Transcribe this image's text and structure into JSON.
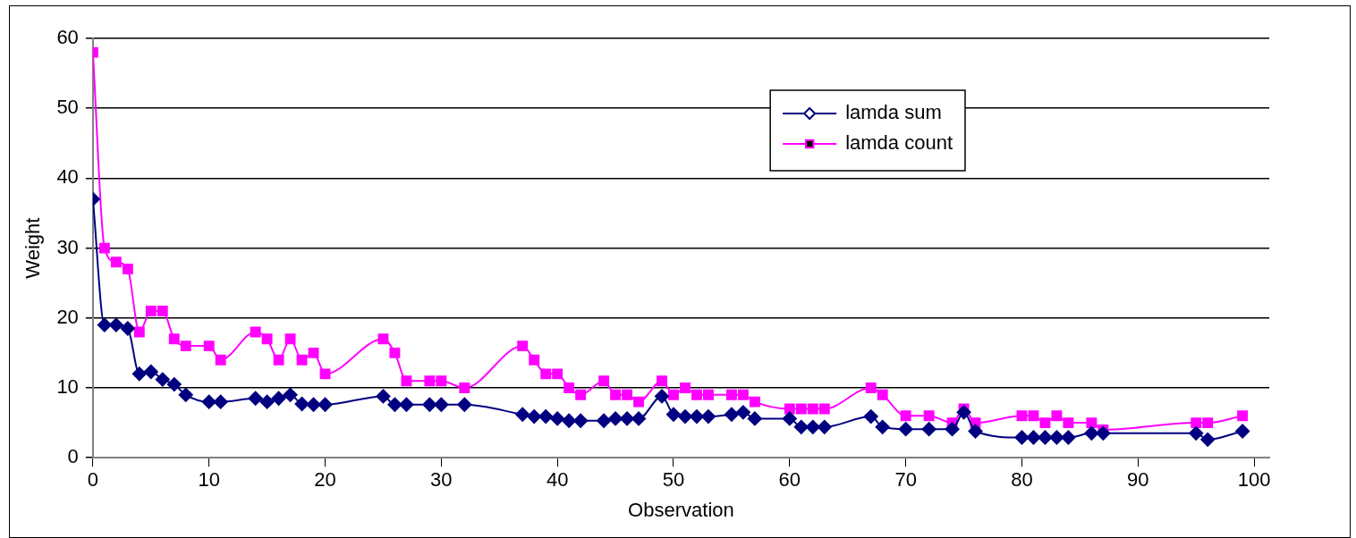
{
  "chart_data": {
    "type": "line",
    "xlabel": "Observation",
    "ylabel": "Weight",
    "xlim": [
      0,
      101.3
    ],
    "xticks": [
      0,
      10,
      20,
      30,
      40,
      50,
      60,
      70,
      80,
      90,
      100
    ],
    "ylim": [
      0,
      60
    ],
    "yticks": [
      0,
      10,
      20,
      30,
      40,
      50,
      60
    ],
    "grid": "y",
    "legend": "top right",
    "series": [
      {
        "name": "lamda sum",
        "color": "#000080",
        "marker": "diamond",
        "x": [
          0,
          1,
          2,
          3,
          4,
          5,
          6,
          7,
          8,
          10,
          11,
          14,
          15,
          16,
          17,
          18,
          19,
          20,
          25,
          26,
          27,
          29,
          30,
          32,
          37,
          38,
          39,
          40,
          41,
          42,
          44,
          45,
          46,
          47,
          49,
          50,
          51,
          52,
          53,
          55,
          56,
          57,
          60,
          61,
          62,
          63,
          67,
          68,
          70,
          72,
          74,
          75,
          76,
          80,
          81,
          82,
          83,
          84,
          86,
          87,
          95,
          96,
          99
        ],
        "values": [
          37,
          19,
          19,
          18.5,
          12,
          12.3,
          11.2,
          10.5,
          9,
          8,
          8,
          8.5,
          8,
          8.5,
          9,
          7.7,
          7.6,
          7.6,
          8.8,
          7.6,
          7.6,
          7.6,
          7.6,
          7.6,
          6.2,
          5.9,
          5.9,
          5.6,
          5.3,
          5.3,
          5.3,
          5.6,
          5.6,
          5.6,
          8.8,
          6.2,
          5.9,
          5.9,
          5.9,
          6.2,
          6.5,
          5.6,
          5.6,
          4.4,
          4.4,
          4.4,
          5.9,
          4.4,
          4.1,
          4.1,
          4.1,
          6.5,
          3.8,
          2.9,
          2.9,
          2.9,
          2.9,
          2.9,
          3.5,
          3.5,
          3.5,
          2.6,
          3.8
        ]
      },
      {
        "name": "lamda count",
        "color": "#ff00ff",
        "marker": "square",
        "x": [
          0,
          1,
          2,
          3,
          4,
          5,
          6,
          7,
          8,
          10,
          11,
          14,
          15,
          16,
          17,
          18,
          19,
          20,
          25,
          26,
          27,
          29,
          30,
          32,
          37,
          38,
          39,
          40,
          41,
          42,
          44,
          45,
          46,
          47,
          49,
          50,
          51,
          52,
          53,
          55,
          56,
          57,
          60,
          61,
          62,
          63,
          67,
          68,
          70,
          72,
          74,
          75,
          76,
          80,
          81,
          82,
          83,
          84,
          86,
          87,
          95,
          96,
          99
        ],
        "values": [
          58,
          30,
          28,
          27,
          18,
          21,
          21,
          17,
          16,
          16,
          14,
          18,
          17,
          14,
          17,
          14,
          15,
          12,
          17,
          15,
          11,
          11,
          11,
          10,
          16,
          14,
          12,
          12,
          10,
          9,
          11,
          9,
          9,
          8,
          11,
          9,
          10,
          9,
          9,
          9,
          9,
          8,
          7,
          7,
          7,
          7,
          10,
          9,
          6,
          6,
          5,
          7,
          5,
          6,
          6,
          5,
          6,
          5,
          5,
          4,
          5,
          5,
          6
        ]
      }
    ]
  }
}
